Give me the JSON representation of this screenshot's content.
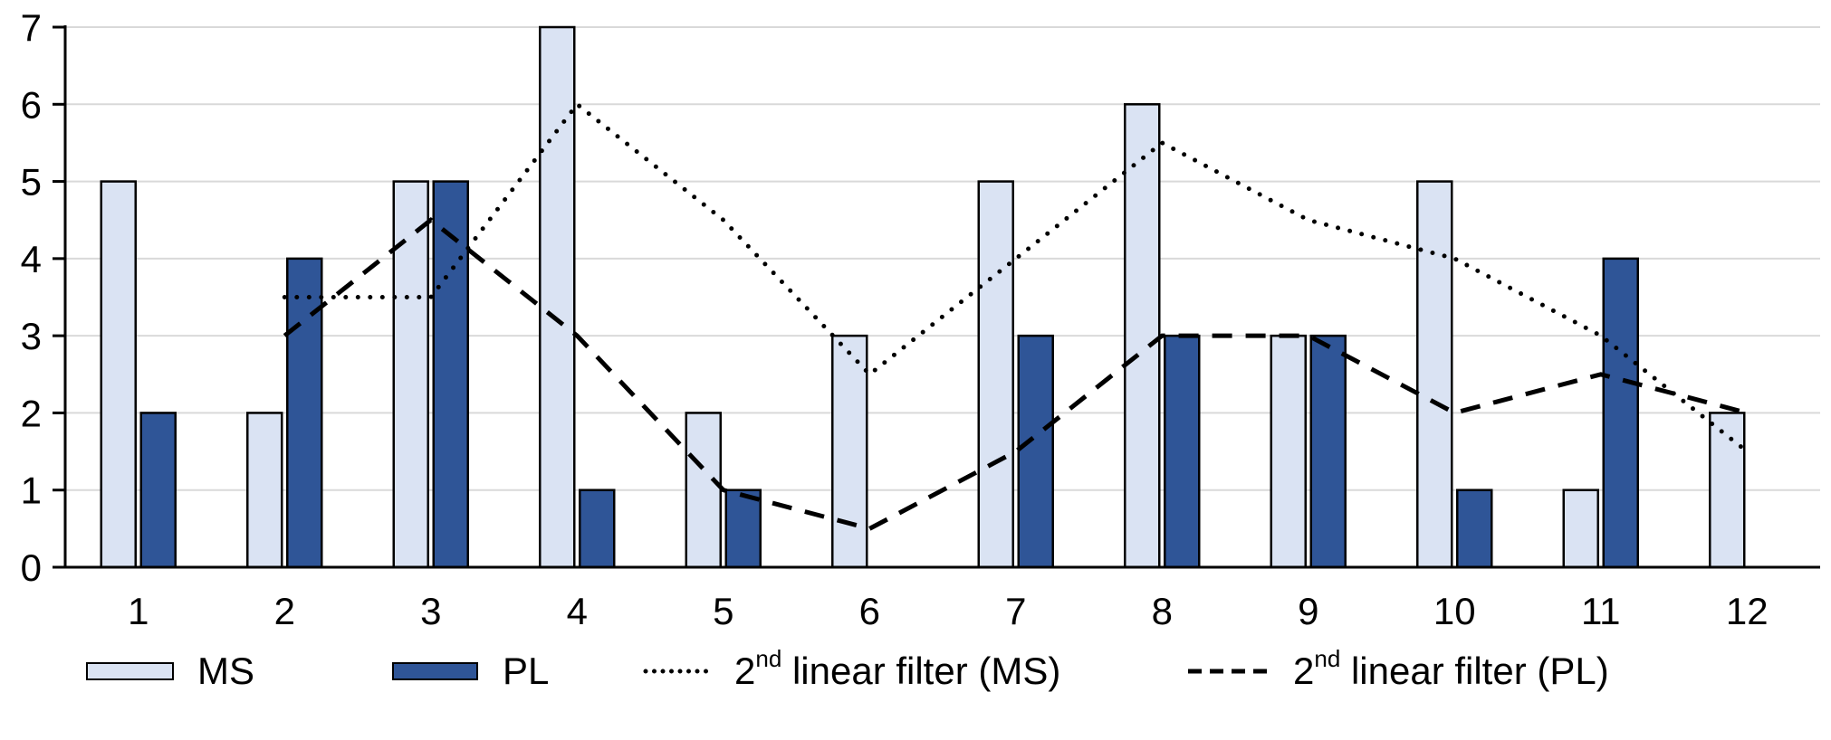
{
  "chart_data": {
    "type": "bar+line",
    "title": "",
    "xlabel": "",
    "ylabel": "",
    "categories": [
      "1",
      "2",
      "3",
      "4",
      "5",
      "6",
      "7",
      "8",
      "9",
      "10",
      "11",
      "12"
    ],
    "y_axis": {
      "min": 0,
      "max": 7,
      "tick_step": 1,
      "ticks": [
        0,
        1,
        2,
        3,
        4,
        5,
        6,
        7
      ]
    },
    "grid": "horizontal",
    "legend_position": "bottom",
    "gridline_color": "#d9d9d9",
    "axis_color": "#000000",
    "series": [
      {
        "name": "MS",
        "type": "bar",
        "values": [
          5,
          2,
          5,
          7,
          2,
          3,
          5,
          6,
          3,
          5,
          1,
          2
        ],
        "fill": "#dae3f3",
        "border": "#000000"
      },
      {
        "name": "PL",
        "type": "bar",
        "values": [
          2,
          4,
          5,
          1,
          1,
          0,
          3,
          3,
          3,
          1,
          4,
          0
        ],
        "fill": "#2f5597",
        "border": "#000000"
      },
      {
        "name": "2nd linear filter (MS)",
        "type": "line",
        "style": "dotted",
        "x_start": 2,
        "color": "#000000",
        "values": [
          3.5,
          3.5,
          6,
          4.5,
          2.5,
          4,
          5.5,
          4.5,
          4,
          3,
          1.5
        ]
      },
      {
        "name": "2nd linear filter (PL)",
        "type": "line",
        "style": "dashed",
        "x_start": 2,
        "color": "#000000",
        "values": [
          3,
          4.5,
          3,
          1,
          0.5,
          1.5,
          3,
          3,
          2,
          2.5,
          2
        ]
      }
    ]
  },
  "legend": {
    "items": [
      {
        "id": "ms",
        "marker": "bar-swatch",
        "label": "MS"
      },
      {
        "id": "pl",
        "marker": "bar-swatch",
        "label": "PL"
      },
      {
        "id": "filter-ms",
        "marker": "dotted-line",
        "label_prefix": "2",
        "label_sup": "nd",
        "label_rest": " linear filter (MS)"
      },
      {
        "id": "filter-pl",
        "marker": "dashed-line",
        "label_prefix": "2",
        "label_sup": "nd",
        "label_rest": " linear filter (PL)"
      }
    ]
  }
}
